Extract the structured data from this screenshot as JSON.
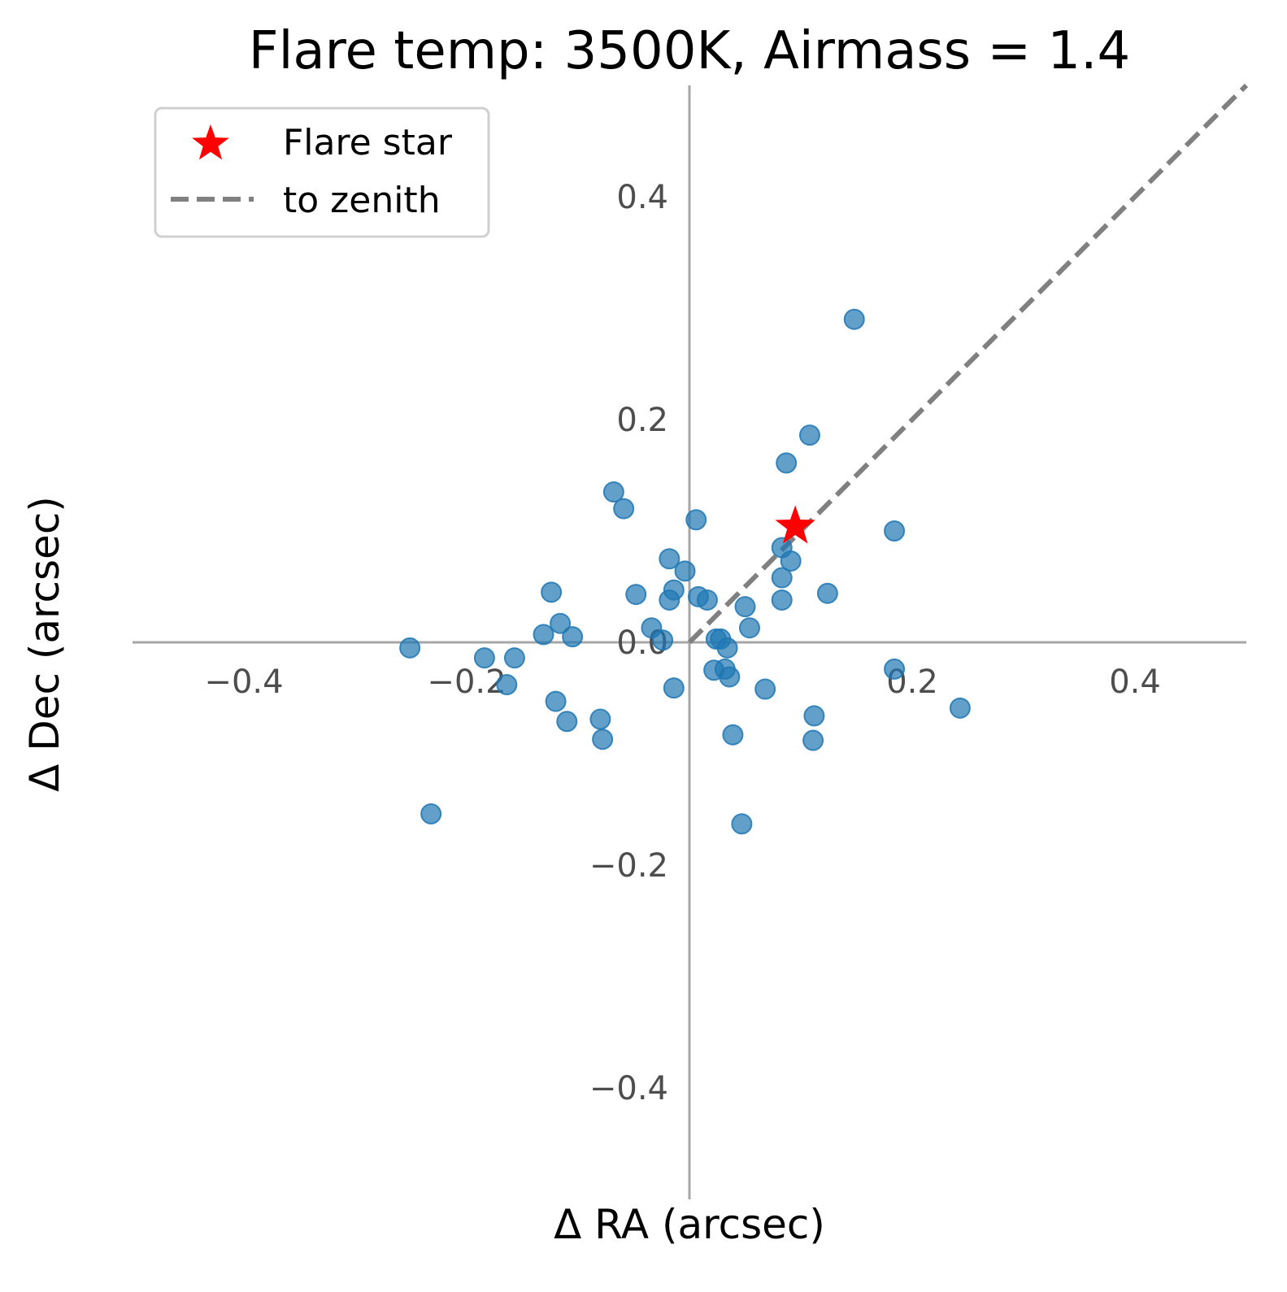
{
  "chart_data": {
    "type": "scatter",
    "title": "Flare temp: 3500K, Airmass = 1.4",
    "xlabel": "Δ RA (arcsec)",
    "ylabel": "Δ Dec (arcsec)",
    "xlim": [
      -0.5,
      0.5
    ],
    "ylim": [
      -0.5,
      0.5
    ],
    "x_ticks": [
      {
        "value": -0.4,
        "label": "−0.4"
      },
      {
        "value": -0.2,
        "label": "−0.2"
      },
      {
        "value": 0.2,
        "label": "0.2"
      },
      {
        "value": 0.4,
        "label": "0.4"
      }
    ],
    "y_ticks": [
      {
        "value": 0.4,
        "label": "0.4"
      },
      {
        "value": 0.2,
        "label": "0.2"
      },
      {
        "value": 0.0,
        "label": "0.0"
      },
      {
        "value": -0.2,
        "label": "−0.2"
      },
      {
        "value": -0.4,
        "label": "−0.4"
      }
    ],
    "grid": false,
    "legend": {
      "placement": "top-left",
      "entries": [
        {
          "label": "Flare star",
          "marker": "star",
          "color": "#ff0000"
        },
        {
          "label": "to zenith",
          "marker": "dashed-line",
          "color": "#808080"
        }
      ]
    },
    "colors": {
      "points": "#1f77b4",
      "flare_star": "#ff0000",
      "zenith_line": "#808080",
      "axes": "#a6a6a6"
    },
    "flare_star": {
      "x": 0.095,
      "y": 0.104
    },
    "zenith_line": {
      "x": [
        0.0,
        0.5
      ],
      "y": [
        0.0,
        0.5
      ]
    },
    "points": [
      {
        "x": 0.148,
        "y": 0.29
      },
      {
        "x": 0.108,
        "y": 0.186
      },
      {
        "x": 0.087,
        "y": 0.161
      },
      {
        "x": -0.068,
        "y": 0.135
      },
      {
        "x": -0.059,
        "y": 0.12
      },
      {
        "x": 0.006,
        "y": 0.11
      },
      {
        "x": 0.184,
        "y": 0.1
      },
      {
        "x": 0.083,
        "y": 0.085
      },
      {
        "x": -0.018,
        "y": 0.075
      },
      {
        "x": 0.091,
        "y": 0.073
      },
      {
        "x": -0.004,
        "y": 0.064
      },
      {
        "x": 0.083,
        "y": 0.058
      },
      {
        "x": -0.124,
        "y": 0.045
      },
      {
        "x": -0.014,
        "y": 0.047
      },
      {
        "x": -0.048,
        "y": 0.043
      },
      {
        "x": 0.124,
        "y": 0.044
      },
      {
        "x": 0.008,
        "y": 0.041
      },
      {
        "x": 0.016,
        "y": 0.038
      },
      {
        "x": -0.018,
        "y": 0.038
      },
      {
        "x": 0.083,
        "y": 0.038
      },
      {
        "x": 0.05,
        "y": 0.032
      },
      {
        "x": -0.116,
        "y": 0.017
      },
      {
        "x": -0.034,
        "y": 0.013
      },
      {
        "x": 0.054,
        "y": 0.013
      },
      {
        "x": -0.131,
        "y": 0.007
      },
      {
        "x": -0.105,
        "y": 0.005
      },
      {
        "x": -0.024,
        "y": 0.002
      },
      {
        "x": 0.024,
        "y": 0.003
      },
      {
        "x": 0.028,
        "y": 0.003
      },
      {
        "x": -0.251,
        "y": -0.005
      },
      {
        "x": 0.034,
        "y": -0.005
      },
      {
        "x": -0.184,
        "y": -0.014
      },
      {
        "x": -0.157,
        "y": -0.014
      },
      {
        "x": 0.184,
        "y": -0.024
      },
      {
        "x": 0.022,
        "y": -0.025
      },
      {
        "x": 0.032,
        "y": -0.024
      },
      {
        "x": 0.036,
        "y": -0.031
      },
      {
        "x": -0.164,
        "y": -0.038
      },
      {
        "x": -0.014,
        "y": -0.041
      },
      {
        "x": 0.068,
        "y": -0.042
      },
      {
        "x": -0.12,
        "y": -0.053
      },
      {
        "x": 0.243,
        "y": -0.059
      },
      {
        "x": 0.112,
        "y": -0.066
      },
      {
        "x": -0.11,
        "y": -0.071
      },
      {
        "x": -0.08,
        "y": -0.069
      },
      {
        "x": 0.039,
        "y": -0.083
      },
      {
        "x": -0.078,
        "y": -0.087
      },
      {
        "x": 0.111,
        "y": -0.088
      },
      {
        "x": -0.232,
        "y": -0.154
      },
      {
        "x": 0.047,
        "y": -0.163
      }
    ]
  }
}
